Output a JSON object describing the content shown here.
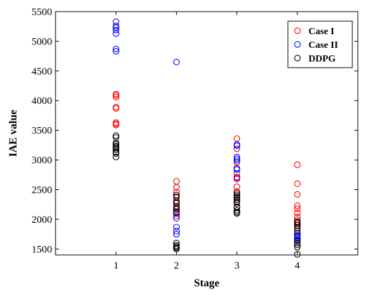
{
  "chart_data": {
    "type": "scatter",
    "xlabel": "Stage",
    "ylabel": "IAE value",
    "xlim": [
      0,
      5
    ],
    "ylim": [
      1400,
      5500
    ],
    "xticks": [
      1,
      2,
      3,
      4
    ],
    "yticks": [
      1500,
      2000,
      2500,
      3000,
      3500,
      4000,
      4500,
      5000,
      5500
    ],
    "grid": false,
    "legend_position": "top-right",
    "marker": "open-circle",
    "series": [
      {
        "name": "Case I",
        "color": "#ff0000",
        "points": [
          [
            1,
            4110
          ],
          [
            1,
            4090
          ],
          [
            1,
            4060
          ],
          [
            1,
            3890
          ],
          [
            1,
            3870
          ],
          [
            1,
            3630
          ],
          [
            1,
            3610
          ],
          [
            1,
            3590
          ],
          [
            2,
            2640
          ],
          [
            2,
            2540
          ],
          [
            2,
            2460
          ],
          [
            2,
            2380
          ],
          [
            2,
            2280
          ],
          [
            2,
            2200
          ],
          [
            2,
            2130
          ],
          [
            2,
            2060
          ],
          [
            3,
            3360
          ],
          [
            3,
            3190
          ],
          [
            3,
            2960
          ],
          [
            3,
            2770
          ],
          [
            3,
            2710
          ],
          [
            3,
            2680
          ],
          [
            3,
            2550
          ],
          [
            3,
            2470
          ],
          [
            3,
            2330
          ],
          [
            3,
            2210
          ],
          [
            3,
            2150
          ],
          [
            4,
            2920
          ],
          [
            4,
            2600
          ],
          [
            4,
            2420
          ],
          [
            4,
            2230
          ],
          [
            4,
            2180
          ],
          [
            4,
            2110
          ],
          [
            4,
            2040
          ],
          [
            4,
            1990
          ],
          [
            4,
            1950
          ],
          [
            4,
            1900
          ],
          [
            4,
            1850
          ]
        ]
      },
      {
        "name": "Case II",
        "color": "#0000ff",
        "points": [
          [
            1,
            5330
          ],
          [
            1,
            5260
          ],
          [
            1,
            5230
          ],
          [
            1,
            5190
          ],
          [
            1,
            5130
          ],
          [
            1,
            4870
          ],
          [
            1,
            4830
          ],
          [
            2,
            4650
          ],
          [
            2,
            2170
          ],
          [
            2,
            2100
          ],
          [
            2,
            2020
          ],
          [
            2,
            1870
          ],
          [
            2,
            1800
          ],
          [
            2,
            1750
          ],
          [
            3,
            3260
          ],
          [
            3,
            3240
          ],
          [
            3,
            3050
          ],
          [
            3,
            3020
          ],
          [
            3,
            2990
          ],
          [
            3,
            2860
          ],
          [
            3,
            2840
          ],
          [
            3,
            2700
          ],
          [
            4,
            1760
          ],
          [
            4,
            1730
          ],
          [
            4,
            1720
          ],
          [
            4,
            1700
          ],
          [
            4,
            1680
          ],
          [
            4,
            1650
          ]
        ]
      },
      {
        "name": "DDPG",
        "color": "#000000",
        "points": [
          [
            1,
            3410
          ],
          [
            1,
            3380
          ],
          [
            1,
            3290
          ],
          [
            1,
            3270
          ],
          [
            1,
            3240
          ],
          [
            1,
            3220
          ],
          [
            1,
            3200
          ],
          [
            1,
            3170
          ],
          [
            1,
            3130
          ],
          [
            1,
            3110
          ],
          [
            1,
            3050
          ],
          [
            2,
            2410
          ],
          [
            2,
            2370
          ],
          [
            2,
            2310
          ],
          [
            2,
            2270
          ],
          [
            2,
            2220
          ],
          [
            2,
            2170
          ],
          [
            2,
            2120
          ],
          [
            2,
            1600
          ],
          [
            2,
            1560
          ],
          [
            2,
            1540
          ],
          [
            2,
            1520
          ],
          [
            2,
            1500
          ],
          [
            3,
            2440
          ],
          [
            3,
            2410
          ],
          [
            3,
            2380
          ],
          [
            3,
            2360
          ],
          [
            3,
            2330
          ],
          [
            3,
            2300
          ],
          [
            3,
            2270
          ],
          [
            3,
            2200
          ],
          [
            3,
            2150
          ],
          [
            3,
            2120
          ],
          [
            3,
            2100
          ],
          [
            4,
            1960
          ],
          [
            4,
            1930
          ],
          [
            4,
            1900
          ],
          [
            4,
            1860
          ],
          [
            4,
            1800
          ],
          [
            4,
            1640
          ],
          [
            4,
            1600
          ],
          [
            4,
            1570
          ],
          [
            4,
            1530
          ],
          [
            4,
            1410
          ]
        ]
      }
    ]
  }
}
